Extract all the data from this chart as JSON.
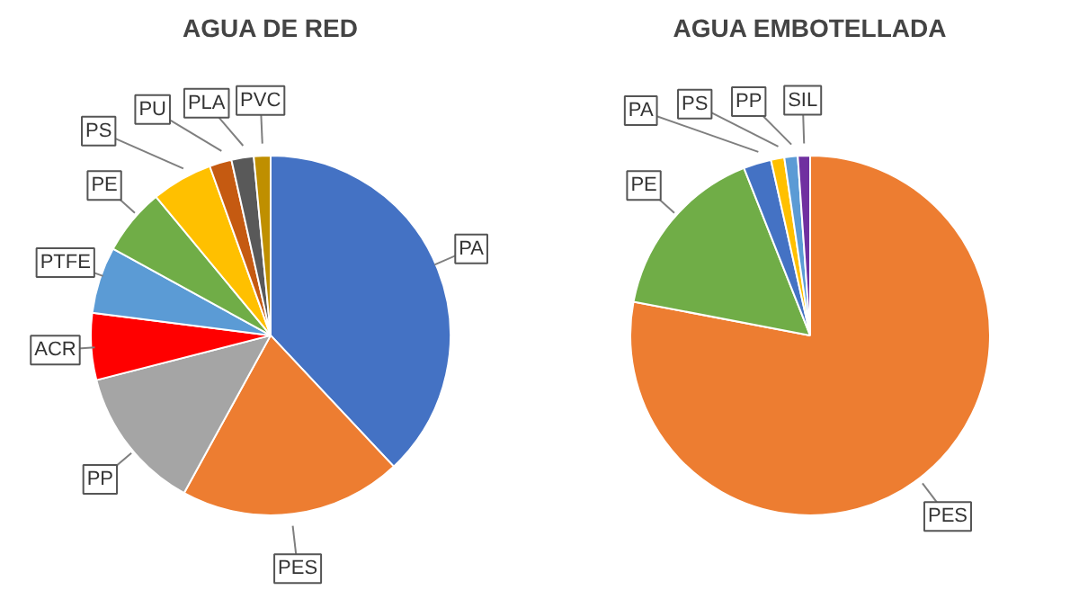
{
  "chart_data": [
    {
      "type": "pie",
      "title": "AGUA DE RED",
      "categories": [
        "PA",
        "PES",
        "PP",
        "ACR",
        "PTFE",
        "PE",
        "PS",
        "PU",
        "PLA",
        "PVC"
      ],
      "values": [
        38,
        20,
        13,
        6,
        6,
        6,
        5.5,
        2,
        2,
        1.5
      ],
      "colors": [
        "#4472c4",
        "#ed7d31",
        "#a5a5a5",
        "#ff0000",
        "#5b9bd5",
        "#70ad47",
        "#ffc000",
        "#c55a11",
        "#595959",
        "#bf8f00"
      ]
    },
    {
      "type": "pie",
      "title": "AGUA EMBOTELLADA",
      "categories": [
        "PES",
        "PE",
        "PA",
        "PS",
        "PP",
        "SIL"
      ],
      "values": [
        78,
        16,
        2.5,
        1.2,
        1.2,
        1.1
      ],
      "colors": [
        "#ed7d31",
        "#70ad47",
        "#4472c4",
        "#ffc000",
        "#5b9bd5",
        "#7030a0"
      ]
    }
  ]
}
